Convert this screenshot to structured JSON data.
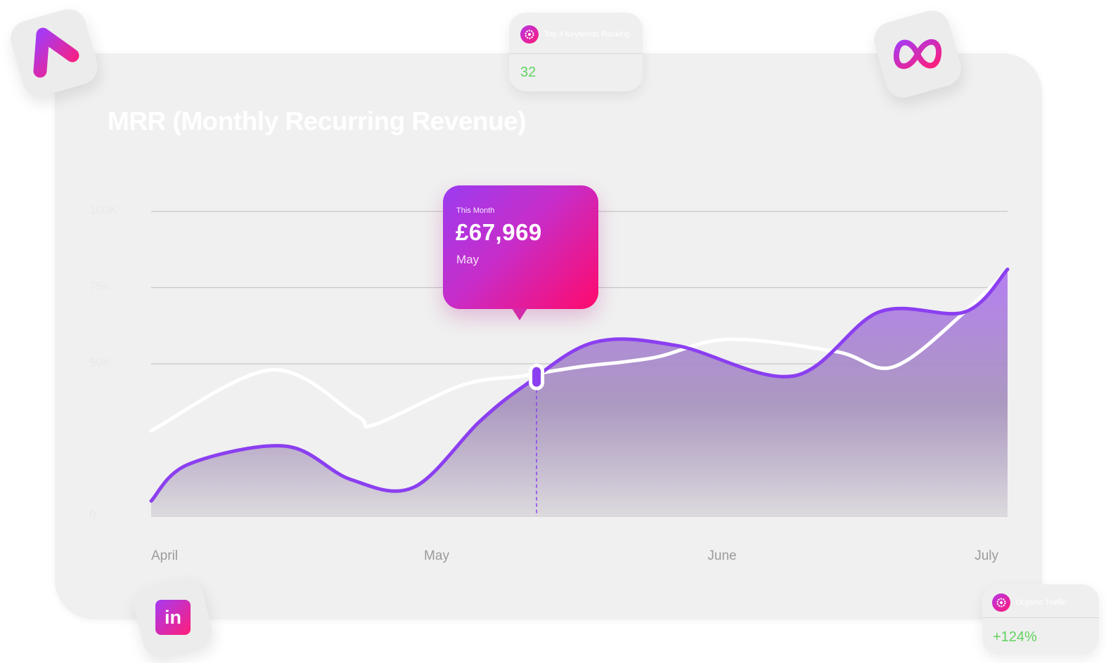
{
  "chart_data": {
    "type": "area",
    "title": "MRR (Monthly Recurring Revenue)",
    "xlabel": "",
    "ylabel": "",
    "x_tick_labels": [
      "April",
      "May",
      "June",
      "July"
    ],
    "y_tick_labels": [
      "0",
      "50K",
      "75K",
      "100K"
    ],
    "y_ticks": [
      0,
      50000,
      75000,
      100000
    ],
    "ylim": [
      0,
      100000
    ],
    "xlim": [
      0,
      3
    ],
    "grid": true,
    "series": [
      {
        "style": "area",
        "color": "#8b3ff0",
        "x": [
          0,
          0.13,
          0.47,
          0.7,
          0.92,
          1.15,
          1.31,
          1.55,
          1.84,
          2.25,
          2.55,
          2.85,
          3.0
        ],
        "values": [
          5000,
          17000,
          23000,
          12000,
          9500,
          31000,
          43000,
          57000,
          56000,
          46000,
          67000,
          67000,
          81000
        ]
      },
      {
        "style": "line",
        "color": "#ffffff",
        "x": [
          0,
          0.42,
          0.72,
          0.78,
          1.09,
          1.3,
          1.5,
          1.76,
          2.02,
          2.4,
          2.6,
          2.85,
          3.0
        ],
        "values": [
          28000,
          48000,
          33000,
          30000,
          43000,
          46000,
          49000,
          52000,
          58000,
          54000,
          49000,
          67000,
          81000
        ]
      }
    ],
    "tooltip": {
      "caption": "This Month",
      "value": "£67,969",
      "month": "May",
      "x": 1.35
    }
  },
  "stat_cards": {
    "keywords": {
      "label": "Top 3 Keywords Ranking",
      "value": "32"
    },
    "traffic": {
      "label": "Organic Traffic",
      "value": "+124%"
    }
  },
  "colors": {
    "accent_purple": "#8b3ff0",
    "accent_pink": "#ff0a6c",
    "positive_green": "#62d25e"
  },
  "icons": [
    "arrow-logo-icon",
    "meta-logo-icon",
    "linkedin-logo-icon",
    "settings-badge-icon"
  ]
}
